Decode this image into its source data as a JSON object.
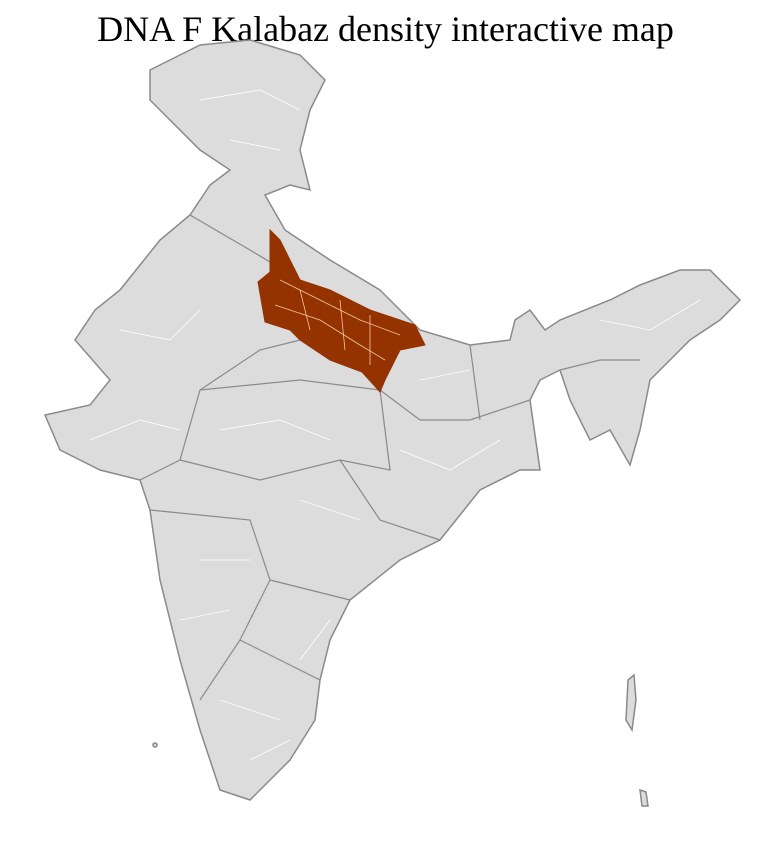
{
  "title": "DNA F Kalabaz density interactive map",
  "map": {
    "region": "India",
    "base_fill": "#dcdcdc",
    "district_border": "#ffffff",
    "state_border": "#8a8a8a",
    "highlight_fill": "#943300",
    "highlight_border": "#f3c7a8",
    "highlighted_state": "Uttar Pradesh"
  }
}
